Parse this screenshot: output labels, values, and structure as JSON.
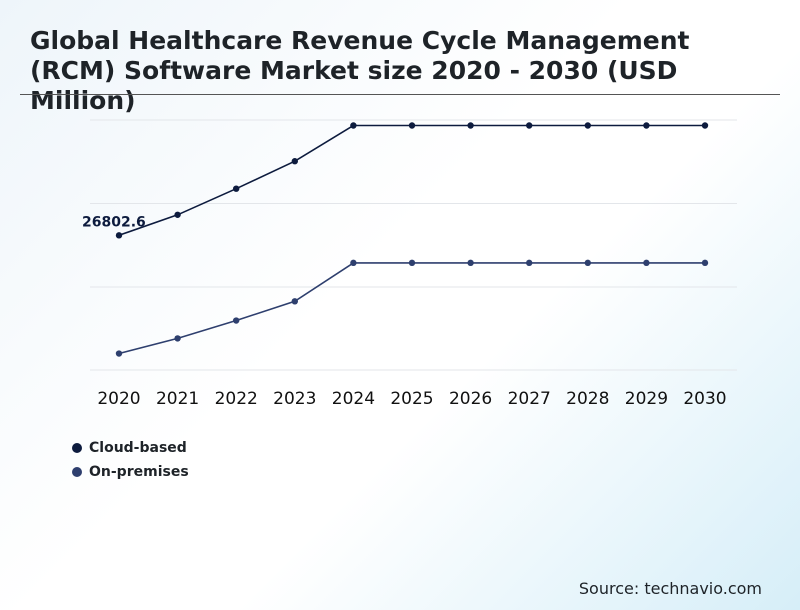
{
  "chart_data": {
    "type": "line",
    "title": "Global Healthcare Revenue Cycle Management (RCM) Software Market size 2020 - 2030 (USD Million)",
    "categories": [
      "2020",
      "2021",
      "2022",
      "2023",
      "2024",
      "2025",
      "2026",
      "2027",
      "2028",
      "2029",
      "2030"
    ],
    "series": [
      {
        "name": "Cloud-based",
        "color": "#0d1b3e",
        "values": [
          26802.6,
          28300,
          30200,
          32200,
          34800,
          34800,
          34800,
          34800,
          34800,
          34800,
          34800
        ]
      },
      {
        "name": "On-premises",
        "color": "#2e3f6e",
        "values": [
          18200,
          19300,
          20600,
          22000,
          24800,
          24800,
          24800,
          24800,
          24800,
          24800,
          24800
        ]
      }
    ],
    "data_labels": [
      {
        "series": "Cloud-based",
        "category": "2020",
        "text": "26802.6"
      }
    ],
    "gridlines": true,
    "legend": "bottom-left",
    "xlabel": "",
    "ylabel": "",
    "ylim": [
      17000,
      35200
    ]
  },
  "source": "Source: technavio.com"
}
